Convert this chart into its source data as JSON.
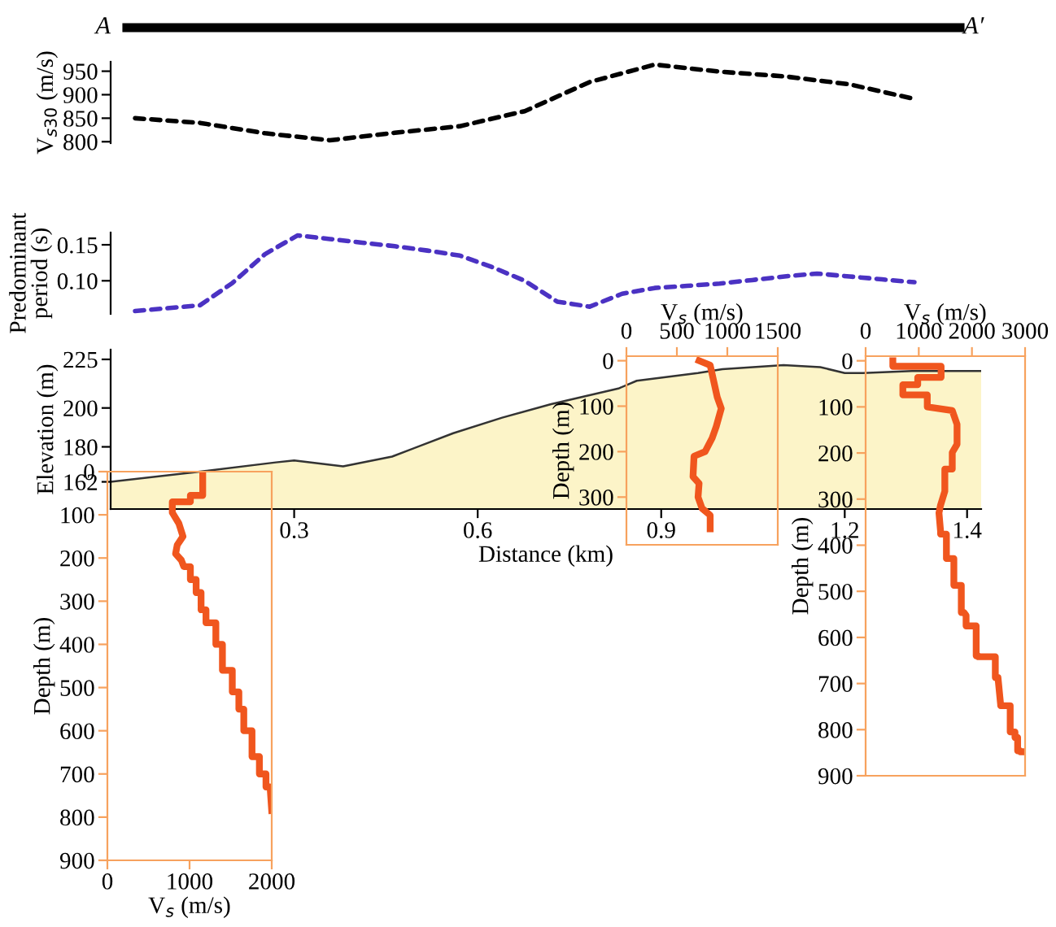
{
  "chart_data": [
    {
      "type": "line",
      "ylabel": "V$_{s30}$ (m/s)",
      "annotations": [
        "A",
        "A′"
      ],
      "categories": [
        null,
        null,
        null,
        null,
        null,
        null,
        null,
        null,
        null,
        null,
        null,
        null,
        null
      ],
      "series": [
        {
          "color": "#000000",
          "values": [
            850,
            840,
            818,
            803,
            819,
            833,
            865,
            927,
            964,
            949,
            939,
            922,
            891
          ]
        }
      ],
      "line_style": "dashed",
      "ylim": [
        797,
        970
      ],
      "yticks": [
        800,
        850,
        900,
        950
      ],
      "tick_labels": "y"
    },
    {
      "type": "line",
      "ylabel": "Predominant\nperiod (s)",
      "categories": [
        null,
        null,
        null,
        null,
        null,
        null,
        null,
        null,
        null,
        null,
        null,
        null,
        null,
        null,
        null,
        null,
        null,
        null,
        null,
        null,
        null,
        null,
        null,
        null,
        null
      ],
      "series": [
        {
          "color": "#4b32c3",
          "values": [
            0.058,
            0.062,
            0.066,
            0.097,
            0.137,
            0.163,
            0.158,
            0.153,
            0.148,
            0.142,
            0.135,
            0.119,
            0.1,
            0.071,
            0.064,
            0.082,
            0.09,
            0.093,
            0.096,
            0.101,
            0.106,
            0.11,
            0.106,
            0.102,
            0.098
          ]
        }
      ],
      "line_style": "dashed",
      "ylim": [
        0.054,
        0.167
      ],
      "yticks": [
        {
          "value": 0.1,
          "label": "0.10"
        },
        {
          "value": 0.15,
          "label": "0.15"
        }
      ],
      "tick_labels": "y"
    },
    {
      "type": "area",
      "xlabel": "Distance (km)",
      "ylabel": "Elevation (m)",
      "x": [
        0,
        0.14,
        0.27,
        0.3,
        0.38,
        0.46,
        0.56,
        0.64,
        0.72,
        0.83,
        0.86,
        0.96,
        1.0,
        1.1,
        1.16,
        1.2,
        1.23,
        1.31,
        1.423
      ],
      "series": [
        {
          "color": "#fcf4c8",
          "values": [
            162,
            167,
            172,
            173,
            170,
            175,
            187,
            195,
            202,
            210,
            214,
            218,
            220,
            222,
            221,
            218,
            218,
            219,
            219
          ]
        }
      ],
      "xlim": [
        0,
        1.423
      ],
      "ylim": [
        148,
        230
      ],
      "xticks": [
        0.3,
        0.6,
        0.9,
        1.2,
        1.4
      ],
      "yticks": [
        162,
        180,
        200,
        225
      ]
    },
    {
      "type": "line",
      "xlabel": "V$_{s}$ (m/s)",
      "ylabel": "Depth (m)",
      "series": [
        {
          "color": "#f0561e",
          "x": [
            1160,
            1160,
            1010,
            1010,
            790,
            790,
            870,
            920,
            850,
            830,
            900,
            930,
            1010,
            1010,
            1080,
            1080,
            1140,
            1140,
            1200,
            1200,
            1320,
            1320,
            1400,
            1400,
            1520,
            1520,
            1600,
            1600,
            1660,
            1660,
            1760,
            1760,
            1850,
            1850,
            1930,
            1930,
            1980,
            2000
          ],
          "values": [
            0,
            55,
            55,
            70,
            70,
            95,
            120,
            150,
            170,
            190,
            205,
            220,
            220,
            250,
            250,
            280,
            280,
            320,
            320,
            350,
            350,
            400,
            400,
            460,
            460,
            510,
            510,
            550,
            550,
            600,
            600,
            660,
            660,
            700,
            700,
            730,
            730,
            785
          ]
        }
      ],
      "xlim": [
        0,
        2000
      ],
      "ylim": [
        900,
        0
      ],
      "xticks": [
        0,
        1000,
        2000
      ],
      "yticks": [
        0,
        100,
        200,
        300,
        400,
        500,
        600,
        700,
        800,
        900
      ]
    },
    {
      "type": "line",
      "xlabel": "V$_{s}$ (m/s)",
      "ylabel": "Depth (m)",
      "series": [
        {
          "color": "#f0561e",
          "x": [
            720,
            830,
            860,
            900,
            940,
            890,
            850,
            780,
            670,
            660,
            720,
            710,
            750,
            830,
            830
          ],
          "values": [
            0,
            10,
            40,
            80,
            105,
            145,
            170,
            200,
            210,
            255,
            270,
            300,
            325,
            340,
            370
          ]
        }
      ],
      "xlim": [
        0,
        1500
      ],
      "xticks": [
        0,
        500,
        1000,
        1500
      ],
      "ylim": [
        405,
        -10
      ],
      "yticks": [
        0,
        100,
        200,
        300
      ]
    },
    {
      "type": "line",
      "xlabel": "V$_{s}$ (m/s)",
      "ylabel": "Depth (m)",
      "series": [
        {
          "color": "#f0561e",
          "x": [
            512,
            512,
            1420,
            1420,
            980,
            980,
            700,
            700,
            1160,
            1160,
            1630,
            1720,
            1720,
            1630,
            1630,
            1490,
            1490,
            1410,
            1380,
            1410,
            1410,
            1520,
            1520,
            1660,
            1660,
            1800,
            1800,
            1850,
            1890,
            1890,
            2080,
            2080,
            2120,
            2120,
            2440,
            2440,
            2490,
            2540,
            2540,
            2720,
            2720,
            2810,
            2810,
            2860,
            2860,
            2910,
            2910,
            3000
          ],
          "values": [
            0,
            12,
            12,
            36,
            36,
            52,
            52,
            74,
            74,
            100,
            108,
            138,
            181,
            199,
            235,
            235,
            283,
            313,
            330,
            370,
            376,
            376,
            429,
            429,
            487,
            487,
            546,
            546,
            552,
            575,
            575,
            640,
            640,
            642,
            642,
            687,
            687,
            746,
            748,
            748,
            805,
            805,
            817,
            817,
            846,
            846,
            848,
            848
          ]
        }
      ],
      "xlim": [
        0,
        3000
      ],
      "xticks": [
        0,
        1000,
        2000,
        3000
      ],
      "ylim": [
        900,
        -10
      ],
      "yticks": [
        0,
        100,
        200,
        300,
        400,
        500,
        600,
        700,
        800,
        900
      ]
    }
  ]
}
